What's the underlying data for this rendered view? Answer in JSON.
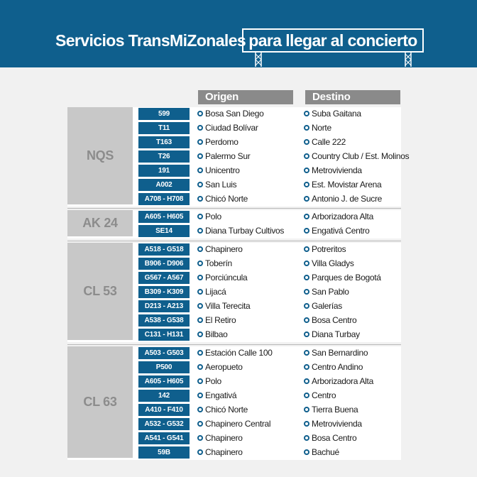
{
  "header": {
    "title_main": "Servicios TransMiZonales",
    "title_boxed": "para llegar al concierto",
    "background_color": "#0f5f8d"
  },
  "columns": {
    "origin": "Origen",
    "destination": "Destino"
  },
  "groups": [
    {
      "label": "NQS",
      "routes": [
        {
          "code": "599",
          "origin": "Bosa San Diego",
          "destination": "Suba Gaitana"
        },
        {
          "code": "T11",
          "origin": "Ciudad Bolívar",
          "destination": "Norte"
        },
        {
          "code": "T163",
          "origin": "Perdomo",
          "destination": "Calle 222"
        },
        {
          "code": "T26",
          "origin": "Palermo Sur",
          "destination": "Country Club / Est. Molinos"
        },
        {
          "code": "191",
          "origin": "Unicentro",
          "destination": "Metrovivienda"
        },
        {
          "code": "A002",
          "origin": "San Luis",
          "destination": "Est. Movistar Arena"
        },
        {
          "code": "A708 - H708",
          "origin": "Chicó Norte",
          "destination": "Antonio J. de Sucre"
        }
      ]
    },
    {
      "label": "AK 24",
      "routes": [
        {
          "code": "A605 - H605",
          "origin": "Polo",
          "destination": "Arborizadora Alta"
        },
        {
          "code": "SE14",
          "origin": "Diana Turbay Cultivos",
          "destination": "Engativá Centro"
        }
      ]
    },
    {
      "label": "CL 53",
      "routes": [
        {
          "code": "A518 - G518",
          "origin": "Chapinero",
          "destination": "Potreritos"
        },
        {
          "code": "B906 - D906",
          "origin": "Toberín",
          "destination": "Villa Gladys"
        },
        {
          "code": "G567 - A567",
          "origin": "Porciúncula",
          "destination": "Parques de Bogotá"
        },
        {
          "code": "B309 - K309",
          "origin": "Lijacá",
          "destination": "San Pablo"
        },
        {
          "code": "D213 - A213",
          "origin": "Villa Terecita",
          "destination": "Galerías"
        },
        {
          "code": "A538 - G538",
          "origin": "El Retiro",
          "destination": "Bosa Centro"
        },
        {
          "code": "C131 - H131",
          "origin": "Bilbao",
          "destination": "Diana Turbay"
        }
      ]
    },
    {
      "label": "CL 63",
      "routes": [
        {
          "code": "A503 - G503",
          "origin": "Estación Calle 100",
          "destination": "San Bernardino"
        },
        {
          "code": "P500",
          "origin": "Aeropueto",
          "destination": "Centro Andino"
        },
        {
          "code": "A605 - H605",
          "origin": "Polo",
          "destination": "Arborizadora Alta"
        },
        {
          "code": "142",
          "origin": "Engativá",
          "destination": "Centro"
        },
        {
          "code": "A410 - F410",
          "origin": "Chicó Norte",
          "destination": "Tierra Buena"
        },
        {
          "code": "A532 - G532",
          "origin": "Chapinero Central",
          "destination": "Metrovivienda"
        },
        {
          "code": "A541 - G541",
          "origin": "Chapinero",
          "destination": "Bosa Centro"
        },
        {
          "code": "59B",
          "origin": "Chapinero",
          "destination": "Bachué"
        }
      ]
    }
  ]
}
